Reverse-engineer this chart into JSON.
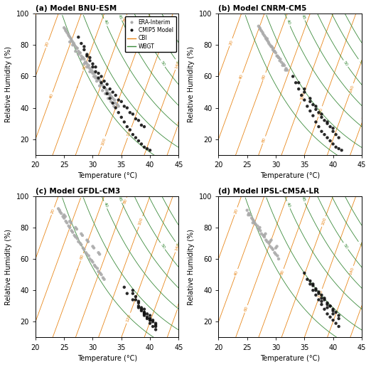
{
  "titles": [
    "(a) Model BNU-ESM",
    "(b) Model CNRM-CM5",
    "(c) Model GFDL-CM3",
    "(d) Model IPSL-CM5A-LR"
  ],
  "xlabel": "Temperature (°C)",
  "ylabel": "Relative Humidity (%)",
  "xlim": [
    20,
    45
  ],
  "ylim": [
    10,
    100
  ],
  "xticks": [
    20,
    25,
    30,
    35,
    40,
    45
  ],
  "yticks": [
    20,
    40,
    60,
    80,
    100
  ],
  "era_color": "#aaaaaa",
  "model_color": "#111111",
  "cbi_color": "#E8871A",
  "wbgt_color": "#3A8A3A",
  "point_size": 10,
  "cbi_levels": [
    0,
    20,
    40,
    60,
    80,
    100,
    120,
    140,
    160
  ],
  "wbgt_levels": [
    30,
    35,
    40,
    45,
    50,
    55,
    60
  ],
  "era_points_a": {
    "T": [
      25.0,
      25.3,
      25.5,
      25.8,
      26.0,
      26.3,
      26.5,
      26.8,
      27.0,
      27.3,
      27.5,
      27.8,
      28.0,
      28.3,
      28.5,
      28.8,
      29.0,
      29.3,
      29.5,
      29.8,
      30.0,
      30.3,
      30.5,
      30.8,
      31.0,
      31.3,
      31.5,
      31.8,
      32.0,
      32.3,
      32.5,
      32.8,
      33.0,
      33.3,
      33.5,
      33.8,
      34.0,
      34.3,
      34.5,
      25.2,
      25.7,
      26.2,
      26.7,
      27.2,
      27.7,
      28.2,
      28.7,
      29.2,
      29.7,
      30.2,
      30.7,
      31.2,
      31.7,
      32.2,
      32.7,
      33.2,
      33.7,
      26.0,
      27.0,
      28.0,
      29.0,
      30.0,
      31.0,
      32.0,
      33.0,
      26.5,
      27.5,
      28.5,
      29.5,
      30.5,
      31.5,
      32.5
    ],
    "RH": [
      91,
      89,
      88,
      86,
      85,
      83,
      82,
      80,
      79,
      78,
      76,
      75,
      73,
      72,
      71,
      69,
      68,
      67,
      65,
      64,
      63,
      62,
      60,
      59,
      58,
      57,
      55,
      54,
      53,
      52,
      51,
      49,
      48,
      47,
      46,
      45,
      43,
      42,
      41,
      90,
      87,
      84,
      81,
      78,
      75,
      72,
      69,
      66,
      63,
      60,
      57,
      54,
      51,
      49,
      46,
      44,
      41,
      82,
      76,
      71,
      66,
      62,
      58,
      53,
      49,
      80,
      74,
      68,
      63,
      59,
      55,
      50
    ]
  },
  "model_points_a": {
    "T": [
      27.5,
      28.0,
      28.5,
      29.0,
      29.5,
      30.0,
      30.5,
      31.0,
      31.5,
      32.0,
      32.5,
      33.0,
      33.5,
      34.0,
      34.5,
      35.0,
      35.5,
      36.0,
      36.5,
      37.0,
      37.5,
      38.0,
      38.5,
      39.0,
      39.5,
      40.0,
      28.5,
      29.5,
      30.5,
      31.5,
      32.5,
      33.5,
      34.5,
      35.5,
      36.5,
      37.5,
      38.5,
      29.0,
      30.0,
      31.0,
      32.0,
      33.0,
      34.0,
      35.0,
      36.0,
      37.0,
      38.0,
      39.0
    ],
    "RH": [
      85,
      81,
      77,
      73,
      70,
      66,
      63,
      59,
      56,
      53,
      49,
      46,
      43,
      40,
      37,
      34,
      31,
      28,
      26,
      23,
      21,
      19,
      17,
      15,
      14,
      13,
      79,
      72,
      66,
      60,
      55,
      50,
      45,
      41,
      37,
      33,
      29,
      74,
      68,
      62,
      57,
      52,
      48,
      44,
      40,
      36,
      32,
      28
    ]
  },
  "era_points_b": {
    "T": [
      27.0,
      27.3,
      27.5,
      27.8,
      28.0,
      28.3,
      28.5,
      28.8,
      29.0,
      29.3,
      29.5,
      29.8,
      30.0,
      30.3,
      30.5,
      30.8,
      31.0,
      31.3,
      31.5,
      31.8,
      32.0,
      27.2,
      27.7,
      28.2,
      28.7,
      29.2,
      29.7,
      30.2,
      30.7,
      31.2,
      31.7,
      28.5,
      29.5,
      30.5
    ],
    "RH": [
      92,
      90,
      89,
      87,
      86,
      84,
      83,
      81,
      80,
      79,
      77,
      76,
      75,
      73,
      72,
      71,
      69,
      68,
      67,
      65,
      64,
      91,
      88,
      85,
      82,
      79,
      76,
      73,
      70,
      67,
      64,
      84,
      78,
      72
    ]
  },
  "model_points_b": {
    "T": [
      33.0,
      33.5,
      34.0,
      34.5,
      35.0,
      35.5,
      36.0,
      36.5,
      37.0,
      37.5,
      38.0,
      38.5,
      39.0,
      39.5,
      40.0,
      40.5,
      41.0,
      41.5,
      34.0,
      35.0,
      36.0,
      37.0,
      38.0,
      39.0,
      40.0,
      41.0,
      35.0,
      36.0,
      37.0,
      38.0,
      39.0,
      40.0,
      36.5,
      37.5,
      38.5,
      39.5,
      40.5
    ],
    "RH": [
      60,
      56,
      52,
      48,
      45,
      41,
      38,
      35,
      31,
      28,
      25,
      23,
      21,
      19,
      17,
      15,
      14,
      13,
      56,
      50,
      44,
      39,
      34,
      30,
      25,
      21,
      52,
      46,
      41,
      36,
      31,
      27,
      42,
      37,
      32,
      28,
      23
    ]
  },
  "era_points_c": {
    "T": [
      24.0,
      24.3,
      24.5,
      24.8,
      25.0,
      25.3,
      25.5,
      25.8,
      26.0,
      26.3,
      26.5,
      26.8,
      27.0,
      27.3,
      27.5,
      27.8,
      28.0,
      28.3,
      28.5,
      28.8,
      29.0,
      29.3,
      29.5,
      29.8,
      30.0,
      30.3,
      30.5,
      30.8,
      31.0,
      31.3,
      31.5,
      31.8,
      32.0,
      24.2,
      25.2,
      26.2,
      27.2,
      28.2,
      29.2,
      30.2,
      31.2,
      25.0,
      26.0,
      27.0,
      28.0,
      29.0,
      30.0,
      31.0
    ],
    "RH": [
      92,
      90,
      89,
      87,
      86,
      84,
      83,
      81,
      80,
      78,
      77,
      75,
      74,
      73,
      71,
      70,
      69,
      67,
      66,
      64,
      63,
      62,
      60,
      59,
      58,
      56,
      55,
      54,
      52,
      51,
      50,
      48,
      47,
      91,
      87,
      83,
      79,
      75,
      71,
      67,
      63,
      88,
      84,
      80,
      76,
      72,
      68,
      64
    ]
  },
  "model_points_c": {
    "T": [
      37.0,
      37.5,
      38.0,
      38.5,
      39.0,
      39.5,
      40.0,
      40.5,
      41.0,
      37.5,
      38.5,
      39.5,
      40.5,
      38.0,
      39.0,
      40.0,
      41.0,
      38.5,
      39.5,
      40.5,
      39.0,
      40.0,
      41.0,
      37.0,
      38.0,
      39.0,
      40.0,
      39.0,
      40.0,
      41.0,
      35.5,
      36.0,
      37.0,
      38.0,
      39.0,
      40.0
    ],
    "RH": [
      40,
      36,
      32,
      28,
      25,
      22,
      19,
      17,
      15,
      34,
      29,
      25,
      21,
      30,
      26,
      22,
      18,
      27,
      23,
      20,
      24,
      21,
      17,
      38,
      33,
      28,
      24,
      26,
      22,
      19,
      42,
      38,
      34,
      29,
      25,
      21
    ]
  },
  "era_points_d": {
    "T": [
      25.0,
      25.3,
      25.5,
      25.8,
      26.0,
      26.3,
      26.5,
      26.8,
      27.0,
      27.3,
      27.5,
      27.8,
      28.0,
      28.3,
      28.5,
      28.8,
      29.0,
      29.3,
      29.5,
      29.8,
      30.0,
      30.3,
      30.5,
      25.2,
      26.2,
      27.2,
      28.2,
      29.2,
      30.2,
      26.0,
      27.0,
      28.0,
      29.0,
      30.0
    ],
    "RH": [
      91,
      89,
      88,
      86,
      85,
      83,
      82,
      81,
      79,
      78,
      76,
      75,
      74,
      72,
      71,
      70,
      68,
      67,
      66,
      64,
      63,
      62,
      60,
      88,
      84,
      80,
      76,
      72,
      68,
      83,
      79,
      75,
      71,
      67
    ]
  },
  "model_points_d": {
    "T": [
      35.0,
      35.5,
      36.0,
      36.5,
      37.0,
      37.5,
      38.0,
      38.5,
      39.0,
      39.5,
      40.0,
      40.5,
      41.0,
      36.0,
      37.0,
      38.0,
      39.0,
      40.0,
      41.0,
      36.5,
      37.5,
      38.5,
      39.5,
      40.5,
      37.0,
      38.0,
      39.0,
      40.0,
      38.0,
      39.0,
      40.0,
      41.0,
      36.5,
      37.5,
      38.5,
      39.5
    ],
    "RH": [
      51,
      47,
      44,
      40,
      37,
      34,
      31,
      28,
      25,
      23,
      21,
      19,
      17,
      46,
      41,
      37,
      32,
      28,
      24,
      43,
      38,
      34,
      30,
      26,
      40,
      35,
      31,
      27,
      33,
      29,
      25,
      22,
      44,
      39,
      35,
      30
    ]
  }
}
